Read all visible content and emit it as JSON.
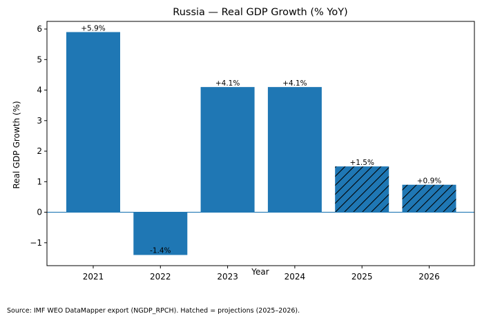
{
  "chart_data": {
    "type": "bar",
    "title": "Russia — Real GDP Growth (% YoY)",
    "xlabel": "Year",
    "ylabel": "Real GDP Growth (%)",
    "categories": [
      "2021",
      "2022",
      "2023",
      "2024",
      "2025",
      "2026"
    ],
    "values": [
      5.9,
      -1.4,
      4.1,
      4.1,
      1.5,
      0.9
    ],
    "data_labels": [
      "+5.9%",
      "-1.4%",
      "+4.1%",
      "+4.1%",
      "+1.5%",
      "+0.9%"
    ],
    "projected": [
      false,
      false,
      false,
      false,
      true,
      true
    ],
    "ylim": [
      -1.75,
      6.25
    ],
    "yticks": [
      -1,
      0,
      1,
      2,
      3,
      4,
      5,
      6
    ],
    "ytick_labels": [
      "−1",
      "0",
      "1",
      "2",
      "3",
      "4",
      "5",
      "6"
    ],
    "grid": false,
    "bar_color": "#1f77b4",
    "hatch_pattern": "diagonal"
  },
  "source_note": "Source: IMF WEO DataMapper export (NGDP_RPCH). Hatched = projections (2025–2026)."
}
